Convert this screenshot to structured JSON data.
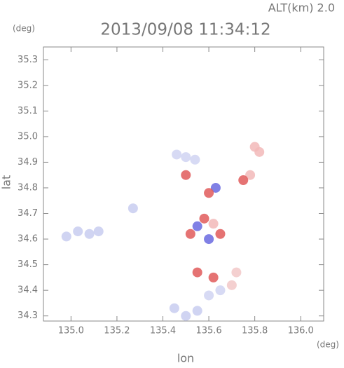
{
  "chart_data": {
    "type": "scatter",
    "annotation": "ALT(km) 2.0",
    "title": "2013/09/08 11:34:12",
    "y_unit": "(deg)",
    "x_unit": "(deg)",
    "xlabel": "lon",
    "ylabel": "lat",
    "xlim": [
      134.88,
      136.1
    ],
    "ylim": [
      34.28,
      35.35
    ],
    "xticks": [
      {
        "value": 135,
        "label": "135.0"
      },
      135.2,
      135.4,
      135.6,
      135.8,
      {
        "value": 136,
        "label": "136.0"
      }
    ],
    "yticks": [
      34.3,
      34.4,
      34.5,
      34.6,
      34.7,
      34.8,
      34.9,
      {
        "value": 35,
        "label": "35.0"
      },
      35.1,
      35.2,
      35.3
    ],
    "x": [
      134.98,
      135.03,
      135.08,
      135.12,
      135.27,
      135.46,
      135.5,
      135.54,
      135.8,
      135.82,
      135.78,
      135.75,
      135.63,
      135.6,
      135.5,
      135.55,
      135.58,
      135.62,
      135.6,
      135.65,
      135.52,
      135.55,
      135.62,
      135.72,
      135.7,
      135.5,
      135.55,
      135.6,
      135.65,
      135.45
    ],
    "y": [
      34.61,
      34.63,
      34.62,
      34.63,
      34.72,
      34.93,
      34.92,
      34.91,
      34.96,
      34.94,
      34.85,
      34.83,
      34.8,
      34.78,
      34.85,
      34.65,
      34.68,
      34.66,
      34.6,
      34.62,
      34.62,
      34.47,
      34.45,
      34.47,
      34.42,
      34.3,
      34.32,
      34.38,
      34.4,
      34.33
    ],
    "colors": [
      "#c8cdf0",
      "#c8cdf0",
      "#c8cdf0",
      "#c8cdf0",
      "#c8cdf0",
      "#d0d4f2",
      "#d0d4f2",
      "#d0d4f2",
      "#f2b8b8",
      "#f2b8b8",
      "#f2b8b8",
      "#e05a5a",
      "#6a6ae0",
      "#e05a5a",
      "#e05a5a",
      "#6a6ae0",
      "#e05a5a",
      "#f2b8b8",
      "#6a6ae0",
      "#e05a5a",
      "#e05a5a",
      "#e05a5a",
      "#e05a5a",
      "#f2c8c8",
      "#f2c8c8",
      "#c8cdf0",
      "#c8cdf0",
      "#d0d4f2",
      "#d0d4f2",
      "#c8cdf0"
    ]
  }
}
